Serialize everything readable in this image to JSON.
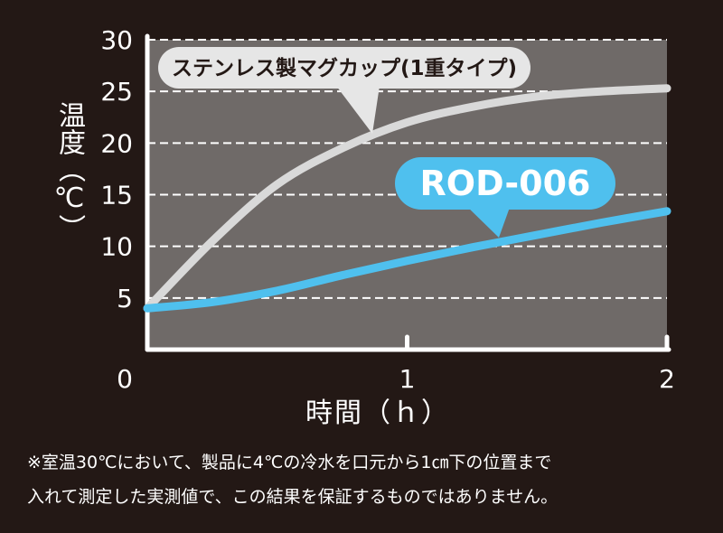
{
  "chart_data": {
    "type": "line",
    "xlabel": "時間（ｈ）",
    "ylabel": "温度（℃）",
    "xlim": [
      0,
      2
    ],
    "ylim": [
      0,
      30
    ],
    "x_ticks": [
      "0",
      "1",
      "2"
    ],
    "y_ticks": [
      "5",
      "10",
      "15",
      "20",
      "25",
      "30"
    ],
    "grid": "horizontal dashed",
    "series": [
      {
        "name": "ステンレス製マグカップ(1重タイプ)",
        "color": "#d9d9d9",
        "x": [
          0,
          0.25,
          0.5,
          0.75,
          1.0,
          1.25,
          1.5,
          1.75,
          2.0
        ],
        "y": [
          4,
          10.5,
          16,
          19.5,
          22,
          23.5,
          24.5,
          25,
          25.3
        ]
      },
      {
        "name": "ROD-006",
        "color": "#4fc0ee",
        "x": [
          0,
          0.25,
          0.5,
          0.75,
          1.0,
          1.25,
          1.5,
          1.75,
          2.0
        ],
        "y": [
          4,
          4.6,
          5.7,
          7.2,
          8.6,
          9.9,
          11.1,
          12.3,
          13.4
        ]
      }
    ],
    "note_line1": "※室温30℃において、製品に4℃の冷水を口元から1㎝下の位置まで",
    "note_line2": "入れて測定した実測値で、この結果を保証するものではありません。"
  },
  "colors": {
    "page_bg": "#231815",
    "plot_bg": "#6f6a68",
    "grid": "#ffffff",
    "axis": "#ffffff"
  }
}
